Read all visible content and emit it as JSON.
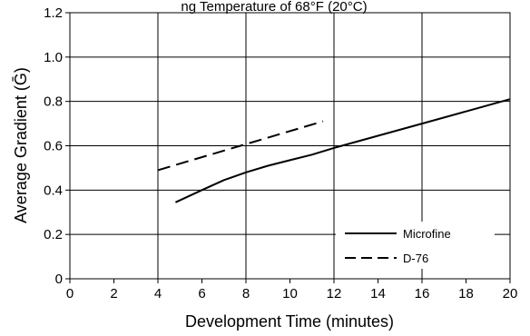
{
  "chart_data": {
    "type": "line",
    "title": "ng Temperature of 68°F (20°C)",
    "xlabel": "Development Time (minutes)",
    "ylabel": "Average Gradient (Ḡ)",
    "xlim": [
      0,
      20
    ],
    "ylim": [
      0,
      1.2
    ],
    "x_ticks": [
      "0",
      "2",
      "4",
      "6",
      "8",
      "10",
      "12",
      "14",
      "16",
      "18",
      "20"
    ],
    "y_ticks": [
      "0",
      "0.2",
      "0.4",
      "0.6",
      "0.8",
      "1.0",
      "1.2"
    ],
    "grid": true,
    "legend_position": "bottom-right",
    "series": [
      {
        "name": "Microfine",
        "line_style": "solid",
        "color": "#000000",
        "points": [
          [
            4.8,
            0.345
          ],
          [
            6,
            0.4
          ],
          [
            7,
            0.445
          ],
          [
            8,
            0.48
          ],
          [
            9,
            0.51
          ],
          [
            10,
            0.535
          ],
          [
            11,
            0.56
          ],
          [
            12,
            0.59
          ],
          [
            14,
            0.645
          ],
          [
            16,
            0.7
          ],
          [
            18,
            0.755
          ],
          [
            20,
            0.81
          ]
        ]
      },
      {
        "name": "D-76",
        "line_style": "dashed",
        "color": "#000000",
        "points": [
          [
            4,
            0.49
          ],
          [
            11.5,
            0.71
          ]
        ]
      }
    ]
  }
}
